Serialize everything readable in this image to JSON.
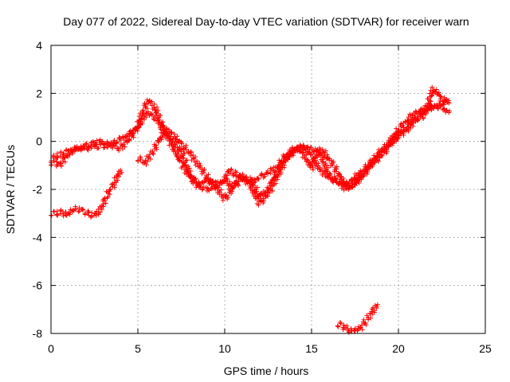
{
  "chart_data": {
    "type": "scatter",
    "title": "Day 077 of 2022, Sidereal Day-to-day VTEC variation (SDTVAR) for receiver warn",
    "xlabel": "GPS time / hours",
    "ylabel": "SDTVAR / TECUs",
    "xlim": [
      0,
      25
    ],
    "ylim": [
      -8,
      4
    ],
    "xticks": [
      0,
      5,
      10,
      15,
      20,
      25
    ],
    "yticks": [
      -8,
      -6,
      -4,
      -2,
      0,
      2,
      4
    ],
    "xtick_labels": [
      "0",
      "5",
      "10",
      "15",
      "20",
      "25"
    ],
    "ytick_labels": [
      "-8",
      "-6",
      "-4",
      "-2",
      "0",
      "2",
      "4"
    ],
    "grid": true,
    "marker": "+",
    "color": "#ff0000",
    "series": [
      {
        "name": "track-a",
        "x": [
          0.0,
          0.3,
          0.6,
          1.0,
          1.5,
          2.0,
          2.5,
          3.0,
          3.5,
          4.0,
          4.5,
          5.0,
          5.3,
          5.6,
          6.0,
          6.4,
          7.0,
          7.5,
          8.0,
          8.5,
          9.0,
          9.5,
          10.0,
          10.3,
          10.7,
          11.0,
          11.5,
          12.0,
          12.5,
          13.0,
          13.5,
          14.0,
          14.5,
          15.0,
          15.5,
          16.0,
          16.5,
          17.0,
          17.5,
          18.0,
          18.5,
          19.0,
          19.5,
          20.0,
          20.5,
          21.0,
          21.5,
          22.0,
          22.5,
          22.9
        ],
        "y": [
          -0.8,
          -0.6,
          -0.5,
          -0.4,
          -0.3,
          -0.3,
          -0.2,
          -0.2,
          -0.1,
          0.1,
          0.3,
          0.6,
          1.3,
          1.7,
          1.4,
          0.6,
          -0.2,
          -0.9,
          -1.5,
          -1.9,
          -2.0,
          -1.9,
          -1.6,
          -1.2,
          -1.4,
          -1.6,
          -1.7,
          -1.5,
          -1.3,
          -1.1,
          -0.6,
          -0.3,
          -0.2,
          -0.6,
          -1.2,
          -1.5,
          -1.7,
          -1.8,
          -1.5,
          -1.2,
          -0.8,
          -0.4,
          0.0,
          0.5,
          0.9,
          1.2,
          1.3,
          1.4,
          1.6,
          1.7
        ]
      },
      {
        "name": "track-b",
        "x": [
          0.0,
          0.3,
          0.5,
          0.8,
          1.2,
          1.6,
          2.0,
          2.4,
          2.8,
          3.2,
          3.6,
          4.0,
          4.5,
          5.0,
          5.5,
          6.0,
          6.5,
          7.0,
          7.5,
          8.0,
          8.5,
          9.0,
          9.5,
          10.0,
          10.5,
          11.0,
          11.5,
          12.0,
          12.5,
          13.0,
          13.5,
          14.0,
          14.5,
          15.0,
          15.5,
          16.0,
          16.5,
          17.0,
          17.5,
          18.0,
          18.5,
          19.0,
          19.5,
          20.0,
          20.5,
          21.0,
          21.5,
          22.0,
          22.5,
          22.9
        ],
        "y": [
          -0.9,
          -0.9,
          -1.0,
          -0.7,
          -0.4,
          -0.3,
          -0.2,
          -0.1,
          0.0,
          -0.1,
          -0.2,
          -0.3,
          0.1,
          0.6,
          1.2,
          1.0,
          0.5,
          0.0,
          -0.4,
          -1.4,
          -1.8,
          -1.6,
          -1.9,
          -2.4,
          -1.9,
          -1.4,
          -1.9,
          -2.6,
          -2.2,
          -1.5,
          -0.8,
          -0.3,
          -0.5,
          -1.1,
          -0.3,
          -0.7,
          -1.3,
          -1.9,
          -1.7,
          -1.3,
          -0.9,
          -0.5,
          -0.1,
          0.2,
          0.5,
          0.9,
          1.1,
          2.2,
          1.8,
          1.6
        ]
      },
      {
        "name": "track-c",
        "x": [
          5.0,
          5.4,
          5.8,
          6.2,
          6.6,
          7.0,
          7.5,
          8.0,
          8.5,
          9.0,
          9.5,
          10.0,
          10.5,
          11.0,
          11.5,
          12.0,
          12.5,
          13.0,
          13.5,
          14.0,
          14.5,
          15.0,
          15.5,
          16.0,
          16.5,
          17.0,
          17.5,
          18.0,
          18.5,
          19.0,
          19.5,
          20.0,
          20.5,
          21.0,
          21.5,
          22.0,
          22.5,
          22.9
        ],
        "y": [
          -0.7,
          -0.9,
          -0.5,
          0.0,
          0.5,
          0.3,
          -0.1,
          -0.5,
          -1.0,
          -1.5,
          -1.8,
          -1.6,
          -1.9,
          -1.5,
          -1.6,
          -2.3,
          -2.0,
          -1.3,
          -0.7,
          -0.4,
          -0.2,
          -0.3,
          -0.5,
          -1.4,
          -1.7,
          -2.0,
          -1.8,
          -1.4,
          -0.9,
          -0.6,
          -0.2,
          0.3,
          0.6,
          1.0,
          1.3,
          1.5,
          1.4,
          1.2
        ]
      },
      {
        "name": "track-d",
        "x": [
          0.0,
          0.3,
          0.6,
          0.9,
          1.2,
          1.5,
          1.8,
          2.1,
          2.5,
          2.8,
          3.0,
          3.2,
          3.4,
          3.6,
          3.8,
          4.0
        ],
        "y": [
          -3.0,
          -3.0,
          -2.9,
          -3.1,
          -2.9,
          -2.8,
          -2.9,
          -3.0,
          -3.1,
          -2.9,
          -2.6,
          -2.3,
          -2.0,
          -1.8,
          -1.5,
          -1.2
        ]
      },
      {
        "name": "track-e",
        "x": [
          16.5,
          16.8,
          17.0,
          17.3,
          17.6,
          17.8,
          18.0,
          18.2,
          18.4,
          18.6,
          18.8
        ],
        "y": [
          -7.6,
          -7.7,
          -7.8,
          -7.9,
          -7.85,
          -7.8,
          -7.6,
          -7.4,
          -7.2,
          -7.0,
          -6.8
        ]
      }
    ]
  }
}
